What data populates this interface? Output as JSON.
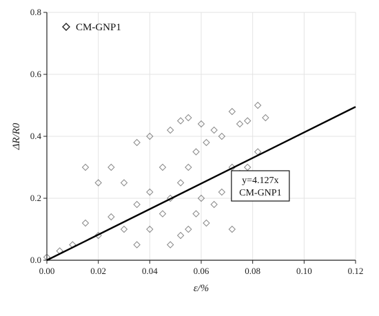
{
  "chart_data": {
    "type": "scatter",
    "xlabel": "ε/%",
    "ylabel": "ΔR/R0",
    "xlim": [
      0.0,
      0.12
    ],
    "ylim": [
      0.0,
      0.8
    ],
    "xticks": [
      "0.00",
      "0.02",
      "0.04",
      "0.06",
      "0.08",
      "0.10",
      "0.12"
    ],
    "yticks": [
      "0.0",
      "0.2",
      "0.4",
      "0.6",
      "0.8"
    ],
    "grid": true,
    "legend": {
      "position": "top-left",
      "entries": [
        "CM-GNP1"
      ]
    },
    "series": [
      {
        "name": "CM-GNP1",
        "marker": "diamond-open",
        "color": "#555555",
        "x": [
          0.0,
          0.005,
          0.01,
          0.015,
          0.015,
          0.02,
          0.02,
          0.025,
          0.025,
          0.03,
          0.03,
          0.035,
          0.035,
          0.035,
          0.04,
          0.04,
          0.04,
          0.045,
          0.045,
          0.048,
          0.048,
          0.048,
          0.052,
          0.052,
          0.052,
          0.055,
          0.055,
          0.055,
          0.058,
          0.058,
          0.06,
          0.06,
          0.062,
          0.062,
          0.065,
          0.065,
          0.068,
          0.068,
          0.072,
          0.072,
          0.072,
          0.075,
          0.075,
          0.078,
          0.078,
          0.082,
          0.082,
          0.085
        ],
        "y": [
          0.01,
          0.03,
          0.05,
          0.12,
          0.3,
          0.08,
          0.25,
          0.14,
          0.3,
          0.1,
          0.25,
          0.05,
          0.18,
          0.38,
          0.1,
          0.22,
          0.4,
          0.15,
          0.3,
          0.05,
          0.2,
          0.42,
          0.08,
          0.25,
          0.45,
          0.1,
          0.3,
          0.46,
          0.15,
          0.35,
          0.2,
          0.44,
          0.12,
          0.38,
          0.18,
          0.42,
          0.22,
          0.4,
          0.1,
          0.3,
          0.48,
          0.28,
          0.44,
          0.3,
          0.45,
          0.35,
          0.5,
          0.46
        ]
      }
    ],
    "fit_line": {
      "slope": 4.127,
      "x": [
        0.0,
        0.12
      ]
    },
    "annotations": [
      {
        "lines": [
          "y=4.127x",
          "CM-GNP1"
        ],
        "anchor_x": 0.083,
        "anchor_y": 0.24
      }
    ]
  }
}
